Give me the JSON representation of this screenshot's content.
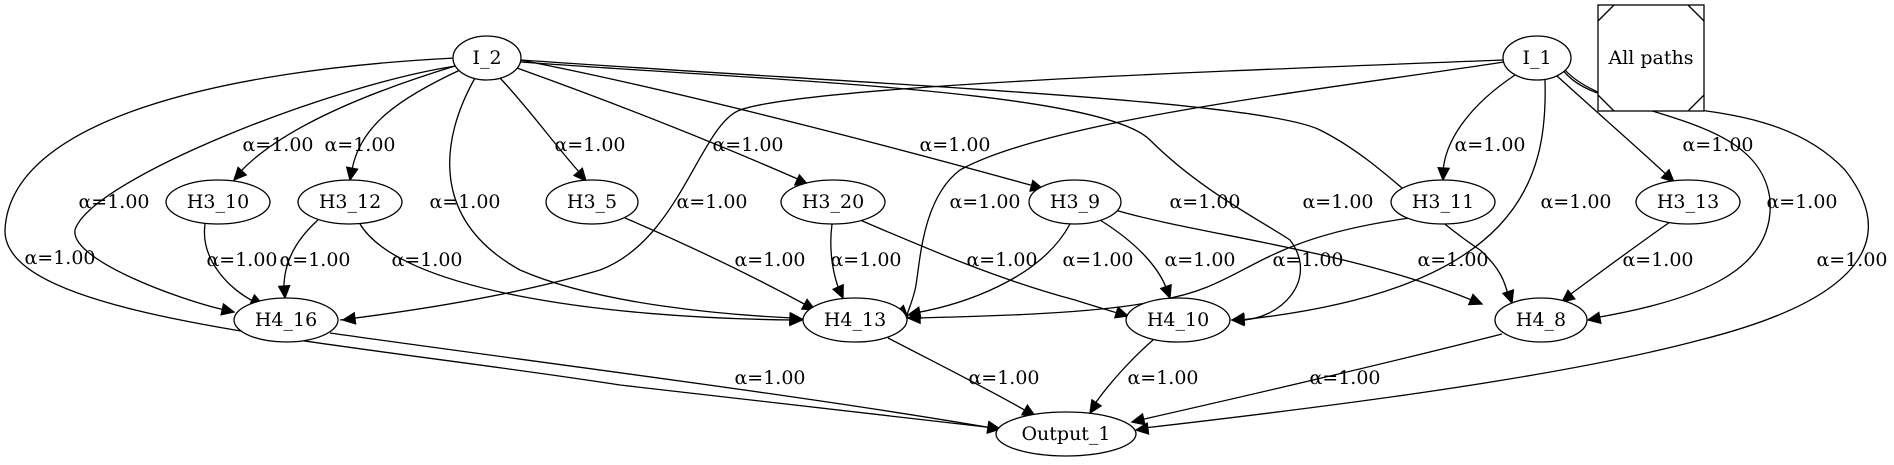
{
  "legend": {
    "label": "All paths"
  },
  "nodes": {
    "I_2": "I_2",
    "I_1": "I_1",
    "H3_10": "H3_10",
    "H3_12": "H3_12",
    "H3_5": "H3_5",
    "H3_20": "H3_20",
    "H3_9": "H3_9",
    "H3_11": "H3_11",
    "H3_13": "H3_13",
    "H4_16": "H4_16",
    "H4_13": "H4_13",
    "H4_10": "H4_10",
    "H4_8": "H4_8",
    "Output_1": "Output_1"
  },
  "edges": [
    {
      "from": "I_2",
      "to": "Output_1",
      "label": "α=1.00"
    },
    {
      "from": "I_2",
      "to": "H4_16",
      "label": "α=1.00"
    },
    {
      "from": "I_2",
      "to": "H3_10",
      "label": "α=1.00"
    },
    {
      "from": "I_2",
      "to": "H3_12",
      "label": "α=1.00"
    },
    {
      "from": "I_2",
      "to": "H4_13",
      "label": "α=1.00"
    },
    {
      "from": "I_2",
      "to": "H3_5",
      "label": "α=1.00"
    },
    {
      "from": "I_2",
      "to": "H3_20",
      "label": "α=1.00"
    },
    {
      "from": "I_2",
      "to": "H3_9",
      "label": "α=1.00"
    },
    {
      "from": "I_2",
      "to": "H4_10",
      "label": "α=1.00"
    },
    {
      "from": "I_2",
      "to": "H4_8",
      "label": "α=1.00"
    },
    {
      "from": "I_1",
      "to": "H4_16",
      "label": "α=1.00"
    },
    {
      "from": "I_1",
      "to": "H4_13",
      "label": "α=1.00"
    },
    {
      "from": "I_1",
      "to": "H3_11",
      "label": "α=1.00"
    },
    {
      "from": "I_1",
      "to": "H4_10",
      "label": "α=1.00"
    },
    {
      "from": "I_1",
      "to": "H3_13",
      "label": "α=1.00"
    },
    {
      "from": "I_1",
      "to": "H4_8",
      "label": "α=1.00"
    },
    {
      "from": "I_1",
      "to": "Output_1",
      "label": "α=1.00"
    },
    {
      "from": "H3_10",
      "to": "H4_16",
      "label": "α=1.00"
    },
    {
      "from": "H3_12",
      "to": "H4_16",
      "label": "α=1.00"
    },
    {
      "from": "H3_12",
      "to": "H4_13",
      "label": "α=1.00"
    },
    {
      "from": "H3_5",
      "to": "H4_13",
      "label": "α=1.00"
    },
    {
      "from": "H3_20",
      "to": "H4_13",
      "label": "α=1.00"
    },
    {
      "from": "H3_20",
      "to": "H4_10",
      "label": "α=1.00"
    },
    {
      "from": "H3_9",
      "to": "H4_13",
      "label": "α=1.00"
    },
    {
      "from": "H3_9",
      "to": "H4_10",
      "label": "α=1.00"
    },
    {
      "from": "H3_9",
      "to": "H4_8",
      "label": "α=1.00"
    },
    {
      "from": "H3_11",
      "to": "H4_13",
      "label": "α=1.00"
    },
    {
      "from": "H3_13",
      "to": "H4_8",
      "label": "α=1.00"
    },
    {
      "from": "H4_16",
      "to": "Output_1",
      "label": "α=1.00"
    },
    {
      "from": "H4_13",
      "to": "Output_1",
      "label": "α=1.00"
    },
    {
      "from": "H4_10",
      "to": "Output_1",
      "label": "α=1.00"
    },
    {
      "from": "H4_8",
      "to": "Output_1",
      "label": "α=1.00"
    }
  ]
}
